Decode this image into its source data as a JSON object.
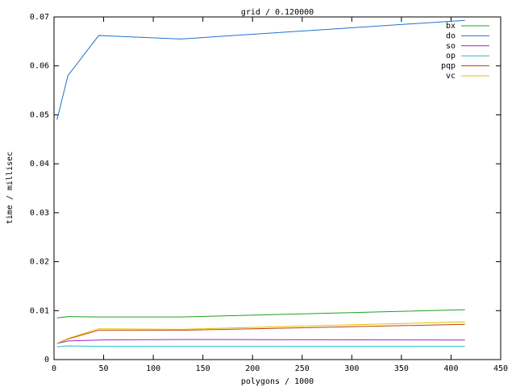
{
  "chart_data": {
    "type": "line",
    "title": "grid / 0.120000",
    "x_label": "polygons / 1000",
    "y_label": "time / millisec",
    "x": [
      3,
      14,
      45,
      128,
      414
    ],
    "series": [
      {
        "name": "bx",
        "color": "#20a020",
        "values": [
          0.0085,
          0.0088,
          0.0087,
          0.0087,
          0.0102
        ]
      },
      {
        "name": "do",
        "color": "#2070d0",
        "values": [
          0.049,
          0.058,
          0.0662,
          0.0655,
          0.0693
        ]
      },
      {
        "name": "so",
        "color": "#a020d0",
        "values": [
          0.0033,
          0.0038,
          0.004,
          0.0041,
          0.004
        ]
      },
      {
        "name": "op",
        "color": "#20c0c0",
        "values": [
          0.0026,
          0.0028,
          0.0027,
          0.0027,
          0.0027
        ]
      },
      {
        "name": "pqp",
        "color": "#c04000",
        "values": [
          0.0033,
          0.0042,
          0.006,
          0.006,
          0.0072
        ]
      },
      {
        "name": "vc",
        "color": "#e0c000",
        "values": [
          0.0033,
          0.0043,
          0.0063,
          0.0062,
          0.0077
        ]
      }
    ],
    "xlim": [
      0,
      450
    ],
    "xticks": [
      0,
      50,
      100,
      150,
      200,
      250,
      300,
      350,
      400,
      450
    ],
    "ylim": [
      0,
      0.07
    ],
    "yticks": [
      0,
      0.01,
      0.02,
      0.03,
      0.04,
      0.05,
      0.06,
      0.07
    ],
    "legend": "top-right",
    "grid": false
  }
}
